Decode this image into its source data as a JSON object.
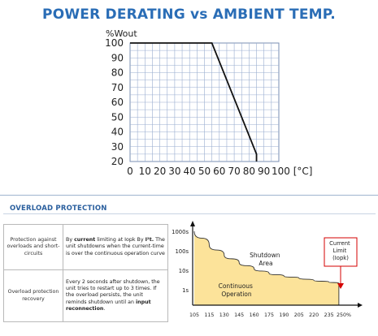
{
  "chart_data": [
    {
      "type": "line",
      "title": "POWER DERATING vs AMBIENT TEMP.",
      "ylabel": "%Wout",
      "xlabel": "",
      "x_ticks": [
        "0",
        "10",
        "20",
        "30",
        "40",
        "50",
        "60",
        "70",
        "80",
        "90",
        "100 [°C]"
      ],
      "y_ticks": [
        "20",
        "30",
        "40",
        "50",
        "60",
        "70",
        "80",
        "90",
        "100"
      ],
      "xlim": [
        0,
        100
      ],
      "ylim": [
        20,
        100
      ],
      "grid": true,
      "series": [
        {
          "x": [
            0,
            55,
            85,
            85
          ],
          "y": [
            100,
            100,
            25,
            20
          ]
        }
      ]
    },
    {
      "type": "area",
      "title": "",
      "y_ticks": [
        "1000s",
        "100s",
        "10s",
        "1s"
      ],
      "x_ticks": [
        "105",
        "115",
        "130",
        "145",
        "160",
        "175",
        "190",
        "205",
        "220",
        "235",
        "250%"
      ],
      "annotations": {
        "shutdown_area": "Shutdown Area",
        "continuous_operation": "Continuous Operation",
        "current_limit": "Current Limit (Iopk)"
      },
      "series": [
        {
          "x": [
            105,
            115,
            130,
            145,
            160,
            175,
            190,
            205,
            220,
            235,
            245
          ],
          "y": [
            1000,
            200,
            60,
            25,
            12,
            7,
            5,
            4,
            3,
            2.5,
            2.2
          ]
        }
      ],
      "colors": {
        "fill": "#fce39a",
        "limit_box": "#d40000"
      }
    }
  ],
  "overload": {
    "heading": "OVERLOAD PROTECTION",
    "rows": [
      {
        "label": "Protection against overloads and short-circuits",
        "desc_parts": [
          {
            "t": "By ",
            "b": false
          },
          {
            "t": "current",
            "b": true
          },
          {
            "t": " limiting at Iopk By ",
            "b": false
          },
          {
            "t": "I²t.",
            "b": true
          },
          {
            "t": " The unit shutdowns when the current-time is over the continuous operation curve",
            "b": false
          }
        ]
      },
      {
        "label": "Overload protection recovery",
        "desc_parts": [
          {
            "t": "Every 2 seconds after shutdown, the unit tries to restart up to 3 times. If the overload persists, the unit reminds shutdown until an ",
            "b": false
          },
          {
            "t": "input reconnection",
            "b": true
          },
          {
            "t": ".",
            "b": false
          }
        ]
      }
    ]
  }
}
